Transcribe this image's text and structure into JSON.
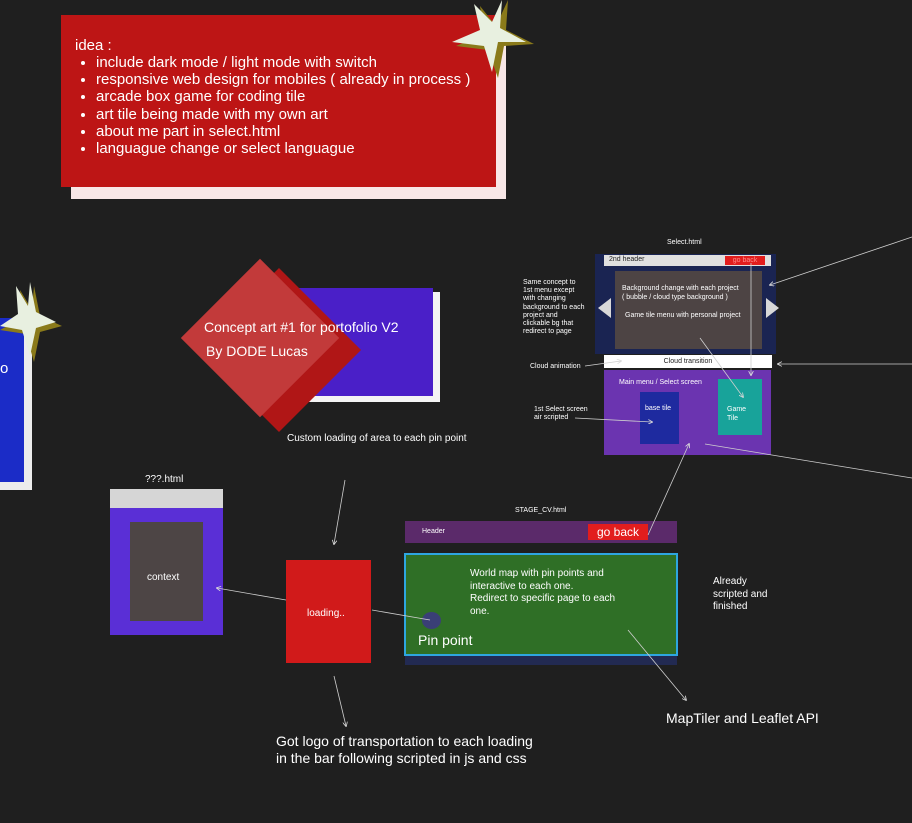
{
  "idea": {
    "title": "idea :",
    "items": [
      "include dark mode / light mode with switch",
      "responsive web design for mobiles ( already in process )",
      "arcade box game for coding tile",
      "art tile being made with my own art",
      "about me part in select.html",
      "languague change or select languague"
    ]
  },
  "concept": {
    "line1": "Concept art #1 for portofolio V2",
    "line2": "By DODE Lucas"
  },
  "left_card_char": "o",
  "select_page": {
    "title": "Select.html",
    "header_label": "2nd header",
    "go_back": "go back",
    "bg_text_1": "Background change with each project",
    "bg_text_2": "( bubble / cloud type background )",
    "bg_text_3": "Game tile menu with personal project",
    "side_note": [
      "Same concept to",
      "1st menu except",
      "with changing",
      "background to each",
      "project and",
      "clickable bg that",
      "redirect to page"
    ],
    "cloud_transition": "Cloud transition",
    "cloud_animation": "Cloud animation",
    "main_menu": "Main menu / Select screen",
    "base_tile": "base tile",
    "game_tile_1": "Game",
    "game_tile_2": "Tile",
    "first_select_1": "1st Select screen",
    "first_select_2": "air scripted"
  },
  "custom_loading": "Custom loading of area to each pin point",
  "unknown_page": {
    "title": "???.html",
    "context": "context"
  },
  "loading": "loading..",
  "stage": {
    "title": "STAGE_CV.html",
    "header": "Header",
    "go_back": "go back",
    "map_text": [
      "World map with pin points and",
      "interactive to each one.",
      "Redirect to specific page to each",
      "one."
    ],
    "pin_point": "Pin point"
  },
  "already": [
    "Already",
    "scripted and",
    "finished"
  ],
  "maptiler": "MapTiler and Leaflet API",
  "transport": [
    "Got logo of transportation to each loading",
    "in the bar following scripted in js and css"
  ],
  "colors": {
    "background": "#1f1f1f",
    "idea_red": "#bd1515",
    "concept_purple": "#4a1fc8",
    "star": "#e8f0e0",
    "star_shadow": "#8a7a1a"
  }
}
